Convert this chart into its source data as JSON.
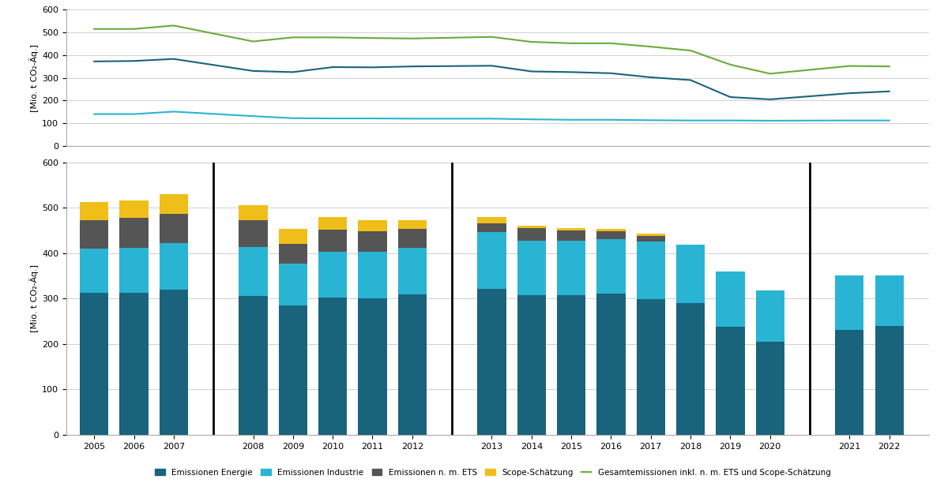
{
  "years_display": [
    "2005",
    "2006",
    "2007",
    "",
    "2008",
    "2009",
    "2010",
    "2011",
    "2012",
    "",
    "2013",
    "2014",
    "2015",
    "2016",
    "2017",
    "2018",
    "2019",
    "2020",
    "",
    "2021",
    "2022"
  ],
  "years_data": [
    "2005",
    "2006",
    "2007",
    "2008",
    "2009",
    "2010",
    "2011",
    "2012",
    "2013",
    "2014",
    "2015",
    "2016",
    "2017",
    "2018",
    "2019",
    "2020",
    "2021",
    "2022"
  ],
  "energie": [
    312,
    313,
    319,
    306,
    284,
    302,
    300,
    309,
    322,
    307,
    307,
    310,
    298,
    290,
    237,
    205,
    230,
    240
  ],
  "industrie": [
    98,
    99,
    103,
    107,
    92,
    100,
    103,
    103,
    125,
    120,
    121,
    120,
    127,
    128,
    122,
    113,
    120,
    110
  ],
  "nm_ets": [
    62,
    65,
    65,
    60,
    45,
    50,
    45,
    42,
    18,
    28,
    22,
    18,
    12,
    0,
    0,
    0,
    0,
    0
  ],
  "scope": [
    40,
    38,
    42,
    33,
    33,
    28,
    25,
    18,
    14,
    5,
    5,
    5,
    5,
    0,
    0,
    0,
    0,
    0
  ],
  "line_green": [
    515,
    515,
    530,
    460,
    478,
    478,
    475,
    473,
    480,
    458,
    452,
    452,
    437,
    420,
    358,
    318,
    352,
    350
  ],
  "line_dark": [
    372,
    374,
    383,
    330,
    325,
    347,
    346,
    350,
    353,
    328,
    325,
    320,
    302,
    290,
    215,
    205,
    232,
    240
  ],
  "line_blue": [
    140,
    140,
    151,
    131,
    122,
    121,
    121,
    120,
    120,
    117,
    115,
    115,
    113,
    112,
    112,
    111,
    112,
    112
  ],
  "color_energie": "#1a637d",
  "color_industrie": "#2ab4d4",
  "color_nm_ets": "#555555",
  "color_scope": "#f0be18",
  "color_green_line": "#6aaa3a",
  "color_dark_line": "#1a637d",
  "color_blue_line": "#2ab4d4",
  "vline_x_positions": [
    3,
    9,
    18
  ],
  "ylabel": "[Mio. t CO₂-Äq.]",
  "ylim": [
    0,
    600
  ],
  "yticks": [
    0,
    100,
    200,
    300,
    400,
    500,
    600
  ],
  "legend_labels": [
    "Emissionen Energie",
    "Emissionen Industrie",
    "Emissionen n. m. ETS",
    "Scope-Schätzung",
    "Gesamtemissionen inkl. n. m. ETS und Scope-Schätzung"
  ],
  "background_color": "#ffffff",
  "grid_color": "#d0d0d0"
}
